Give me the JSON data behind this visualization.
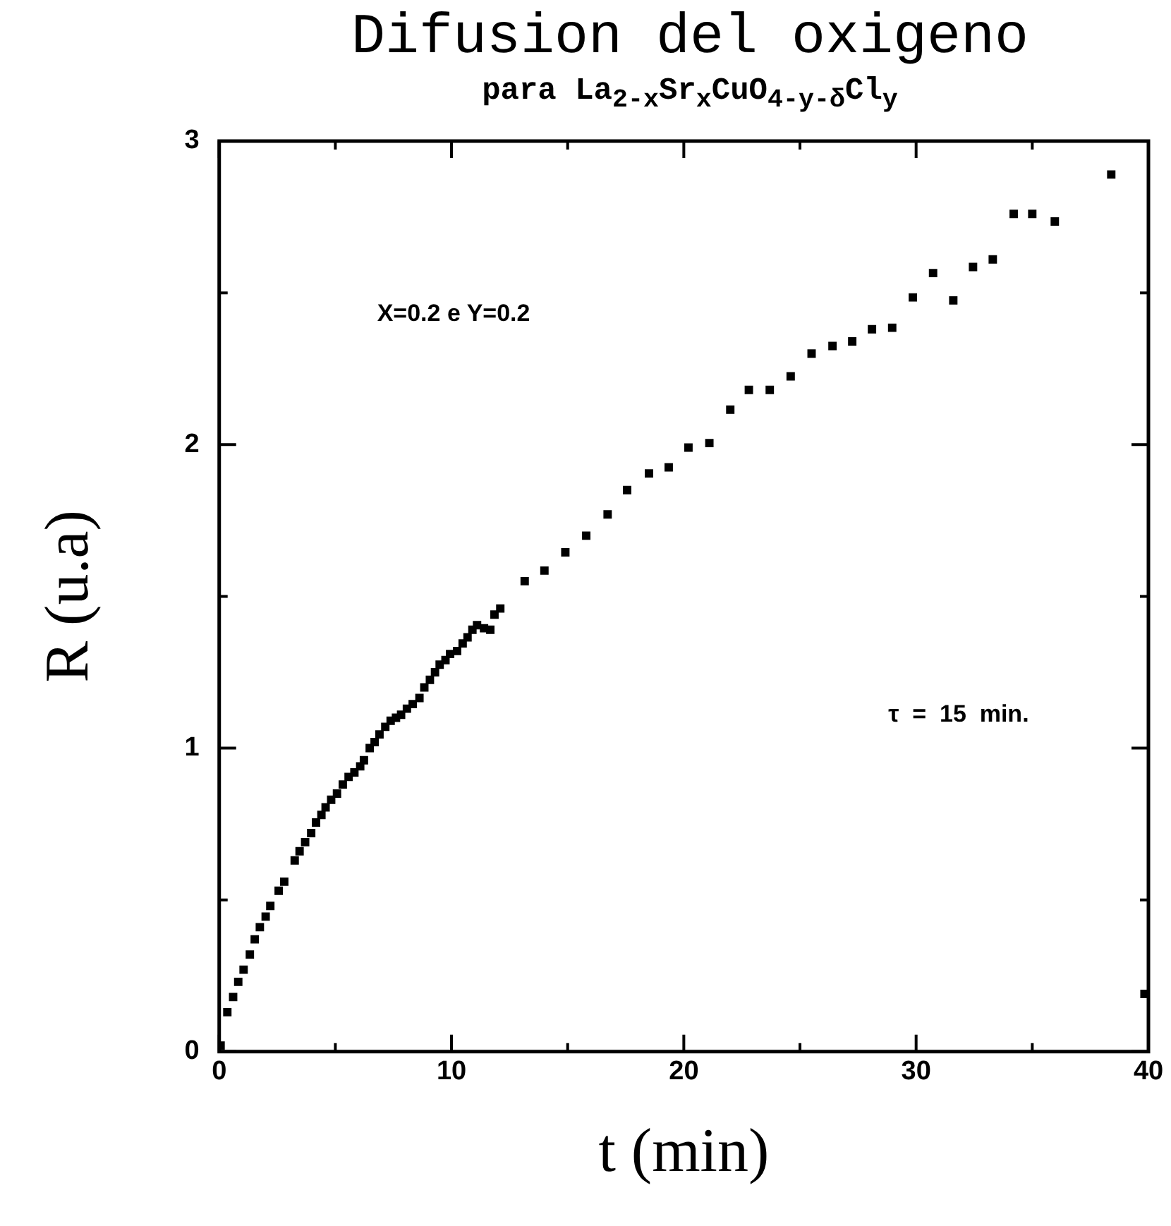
{
  "chart_data": {
    "type": "scatter",
    "title": "Difusion del oxigeno",
    "subtitle": "para La$_{2-x}$Sr$_{x}$CuO$_{4-y-δ}$Cl$_{y}$",
    "xlabel": "t (min)",
    "ylabel": "R (u.a)",
    "annotations": [
      "X=0.2 e Y=0.2",
      "τ  =  15  min."
    ],
    "xlim": [
      0,
      40
    ],
    "ylim": [
      0,
      3
    ],
    "xticks": [
      0,
      {
        "value": 5,
        "label": null
      },
      10,
      {
        "value": 15,
        "label": null
      },
      20,
      {
        "value": 25,
        "label": null
      },
      30,
      {
        "value": 35,
        "label": null
      },
      40
    ],
    "yticks": [
      0,
      {
        "value": 0.5,
        "label": null
      },
      1,
      {
        "value": 1.5,
        "label": null
      },
      2,
      {
        "value": 2.5,
        "label": null
      },
      3
    ],
    "grid": false,
    "legend": false,
    "marker": "square",
    "series": [
      {
        "color": "#000000",
        "x": [
          0.06,
          0.35,
          0.6,
          0.82,
          1.05,
          1.32,
          1.53,
          1.75,
          2.0,
          2.2,
          2.56,
          2.8,
          3.25,
          3.46,
          3.7,
          3.96,
          4.17,
          4.4,
          4.58,
          4.82,
          5.07,
          5.32,
          5.57,
          5.82,
          6.07,
          6.23,
          6.48,
          6.69,
          6.9,
          7.15,
          7.38,
          7.61,
          7.83,
          8.08,
          8.33,
          8.62,
          8.83,
          9.07,
          9.29,
          9.49,
          9.74,
          9.94,
          10.24,
          10.48,
          10.69,
          10.9,
          11.1,
          11.4,
          11.67,
          11.85,
          12.1,
          13.15,
          14.0,
          14.9,
          15.8,
          16.72,
          17.56,
          18.5,
          19.35,
          20.2,
          21.1,
          22.0,
          22.8,
          23.7,
          24.6,
          25.5,
          26.4,
          27.25,
          28.1,
          28.97,
          29.86,
          30.73,
          31.6,
          32.45,
          33.3,
          34.2,
          35.0,
          35.97,
          38.4,
          39.83
        ],
        "values": [
          0.02,
          0.13,
          0.18,
          0.23,
          0.27,
          0.32,
          0.37,
          0.41,
          0.445,
          0.48,
          0.53,
          0.56,
          0.63,
          0.66,
          0.69,
          0.72,
          0.755,
          0.78,
          0.805,
          0.83,
          0.85,
          0.88,
          0.905,
          0.92,
          0.94,
          0.96,
          1.0,
          1.02,
          1.045,
          1.07,
          1.09,
          1.1,
          1.11,
          1.13,
          1.145,
          1.165,
          1.2,
          1.225,
          1.25,
          1.275,
          1.29,
          1.31,
          1.32,
          1.345,
          1.365,
          1.39,
          1.405,
          1.395,
          1.39,
          1.44,
          1.46,
          1.55,
          1.585,
          1.645,
          1.7,
          1.77,
          1.85,
          1.905,
          1.925,
          1.99,
          2.005,
          2.115,
          2.18,
          2.18,
          2.225,
          2.3,
          2.325,
          2.34,
          2.38,
          2.385,
          2.485,
          2.565,
          2.475,
          2.585,
          2.61,
          2.76,
          2.76,
          2.735,
          2.89,
          0.19
        ]
      }
    ]
  }
}
